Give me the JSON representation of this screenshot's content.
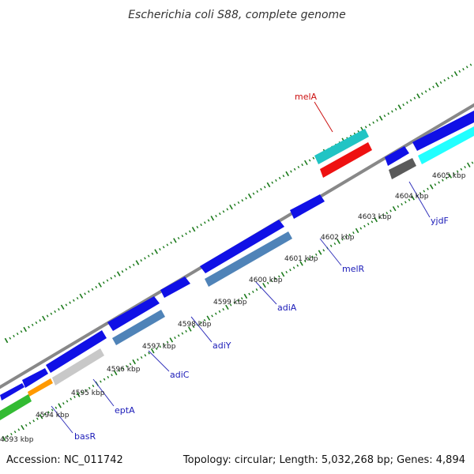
{
  "title": "Escherichia coli S88, complete genome",
  "footer": {
    "accession": "Accession: NC_011742",
    "summary": "Topology: circular; Length: 5,032,268 bp; Genes: 4,894"
  },
  "colors": {
    "backbone": "#888888",
    "tick": "#1b7a1b",
    "blue": "#1010e6",
    "steelblue": "#4f83b8",
    "cyan": "#21c4c4",
    "brightcyan": "#22ffff",
    "red": "#ee1111",
    "gray": "#5a5a5a",
    "lightgray": "#c8c8c8",
    "green": "#33bb33",
    "orange": "#ff9900",
    "label_blue": "#1a1ab8",
    "label_red": "#cc1111"
  },
  "kbp_labels": [
    "4593 kbp",
    "4594 kbp",
    "4595 kbp",
    "4596 kbp",
    "4597 kbp",
    "4598 kbp",
    "4599 kbp",
    "4600 kbp",
    "4601 kbp",
    "4602 kbp",
    "4603 kbp",
    "4604 kbp",
    "4605 kbp"
  ],
  "gene_labels": [
    {
      "name": "basR",
      "color": "label_blue"
    },
    {
      "name": "eptA",
      "color": "label_blue"
    },
    {
      "name": "adiC",
      "color": "label_blue"
    },
    {
      "name": "adiY",
      "color": "label_blue"
    },
    {
      "name": "adiA",
      "color": "label_blue"
    },
    {
      "name": "melR",
      "color": "label_blue"
    },
    {
      "name": "yjdF",
      "color": "label_blue"
    },
    {
      "name": "melA",
      "color": "label_red"
    }
  ]
}
